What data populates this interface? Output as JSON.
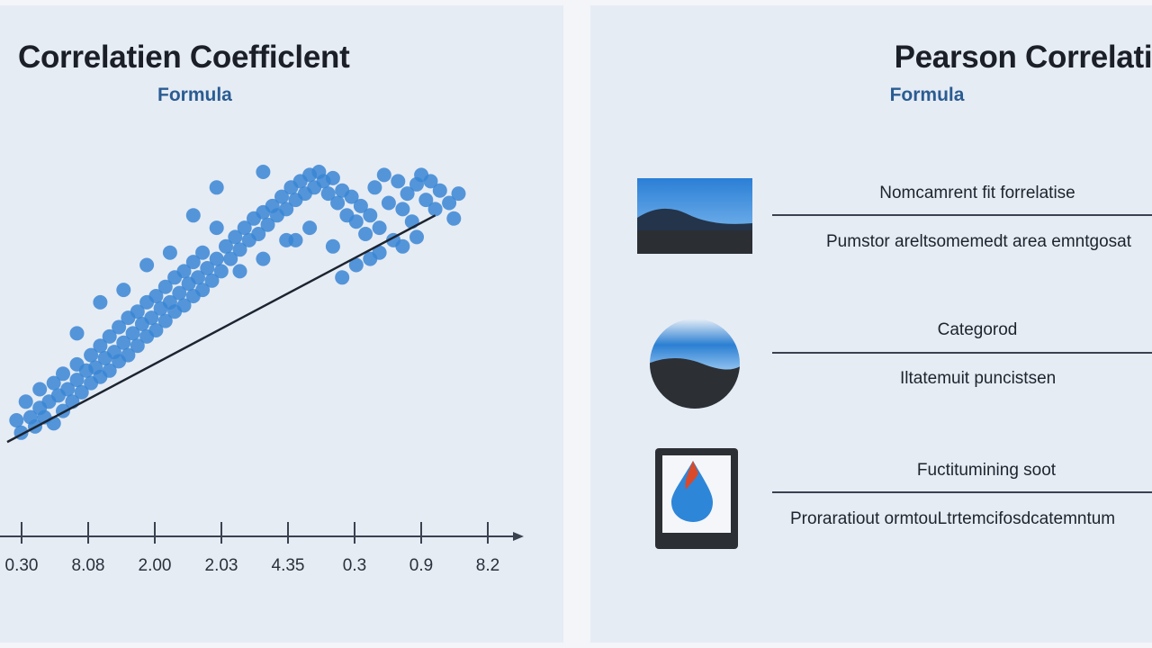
{
  "left": {
    "title": "Correlatien Coefficlent",
    "subtitle": "Formula"
  },
  "right": {
    "title": "Pearson Correlation",
    "subtitle": "Formula",
    "items": [
      {
        "heading": "Nomcamrent fit forrelatise",
        "description": "Pumstor areltsomemedt area emntgosat",
        "icon": "landscape-icon"
      },
      {
        "heading": "Categorod",
        "description": "Iltatemuit puncistsen",
        "icon": "landscape-circle-icon"
      },
      {
        "heading": "Fuctitumining soot",
        "description": "Proraratiout ormtouLtrtemcifosdcatemntum",
        "icon": "droplet-card-icon"
      }
    ]
  },
  "colors": {
    "point": "#3a86d4",
    "trendline": "#1c2430",
    "axis": "#3a4250",
    "title": "#1b1f27",
    "subtitle": "#2a5c92"
  },
  "chart_data": {
    "type": "scatter",
    "title": "Correlatien Coefficlent",
    "subtitle": "Formula",
    "xlabel": "",
    "ylabel": "",
    "x_tick_labels": [
      "0.30",
      "8.08",
      "2.00",
      "2.03",
      "4.35",
      "0.3",
      "0.9",
      "8.2"
    ],
    "grid": false,
    "legend": "none",
    "xlim": [
      0,
      1
    ],
    "ylim": [
      0,
      1
    ],
    "trendline": {
      "x": [
        0.0,
        0.92
      ],
      "y": [
        0.13,
        0.86
      ]
    },
    "points": [
      [
        0.02,
        0.2
      ],
      [
        0.03,
        0.16
      ],
      [
        0.04,
        0.26
      ],
      [
        0.05,
        0.21
      ],
      [
        0.06,
        0.18
      ],
      [
        0.07,
        0.24
      ],
      [
        0.07,
        0.3
      ],
      [
        0.08,
        0.21
      ],
      [
        0.09,
        0.26
      ],
      [
        0.1,
        0.32
      ],
      [
        0.1,
        0.19
      ],
      [
        0.11,
        0.28
      ],
      [
        0.12,
        0.23
      ],
      [
        0.12,
        0.35
      ],
      [
        0.13,
        0.3
      ],
      [
        0.14,
        0.26
      ],
      [
        0.15,
        0.33
      ],
      [
        0.15,
        0.38
      ],
      [
        0.16,
        0.29
      ],
      [
        0.17,
        0.36
      ],
      [
        0.18,
        0.32
      ],
      [
        0.18,
        0.41
      ],
      [
        0.19,
        0.37
      ],
      [
        0.2,
        0.34
      ],
      [
        0.2,
        0.44
      ],
      [
        0.21,
        0.4
      ],
      [
        0.22,
        0.36
      ],
      [
        0.22,
        0.47
      ],
      [
        0.23,
        0.42
      ],
      [
        0.24,
        0.39
      ],
      [
        0.24,
        0.5
      ],
      [
        0.25,
        0.45
      ],
      [
        0.26,
        0.41
      ],
      [
        0.26,
        0.53
      ],
      [
        0.27,
        0.48
      ],
      [
        0.28,
        0.44
      ],
      [
        0.28,
        0.55
      ],
      [
        0.29,
        0.51
      ],
      [
        0.3,
        0.47
      ],
      [
        0.3,
        0.58
      ],
      [
        0.31,
        0.53
      ],
      [
        0.32,
        0.49
      ],
      [
        0.32,
        0.6
      ],
      [
        0.33,
        0.56
      ],
      [
        0.34,
        0.52
      ],
      [
        0.34,
        0.63
      ],
      [
        0.35,
        0.58
      ],
      [
        0.36,
        0.55
      ],
      [
        0.36,
        0.66
      ],
      [
        0.37,
        0.61
      ],
      [
        0.38,
        0.57
      ],
      [
        0.38,
        0.68
      ],
      [
        0.39,
        0.64
      ],
      [
        0.4,
        0.6
      ],
      [
        0.4,
        0.71
      ],
      [
        0.41,
        0.66
      ],
      [
        0.42,
        0.62
      ],
      [
        0.42,
        0.74
      ],
      [
        0.43,
        0.69
      ],
      [
        0.44,
        0.65
      ],
      [
        0.45,
        0.72
      ],
      [
        0.46,
        0.68
      ],
      [
        0.47,
        0.76
      ],
      [
        0.48,
        0.72
      ],
      [
        0.49,
        0.79
      ],
      [
        0.5,
        0.75
      ],
      [
        0.51,
        0.82
      ],
      [
        0.52,
        0.78
      ],
      [
        0.53,
        0.85
      ],
      [
        0.54,
        0.8
      ],
      [
        0.55,
        0.87
      ],
      [
        0.56,
        0.83
      ],
      [
        0.57,
        0.89
      ],
      [
        0.58,
        0.86
      ],
      [
        0.59,
        0.92
      ],
      [
        0.6,
        0.88
      ],
      [
        0.61,
        0.95
      ],
      [
        0.62,
        0.91
      ],
      [
        0.63,
        0.97
      ],
      [
        0.64,
        0.93
      ],
      [
        0.65,
        0.99
      ],
      [
        0.66,
        0.95
      ],
      [
        0.67,
        1.0
      ],
      [
        0.68,
        0.97
      ],
      [
        0.69,
        0.93
      ],
      [
        0.7,
        0.98
      ],
      [
        0.71,
        0.9
      ],
      [
        0.72,
        0.94
      ],
      [
        0.73,
        0.86
      ],
      [
        0.74,
        0.92
      ],
      [
        0.75,
        0.84
      ],
      [
        0.76,
        0.89
      ],
      [
        0.77,
        0.8
      ],
      [
        0.78,
        0.86
      ],
      [
        0.79,
        0.95
      ],
      [
        0.8,
        0.82
      ],
      [
        0.81,
        0.99
      ],
      [
        0.82,
        0.9
      ],
      [
        0.83,
        0.78
      ],
      [
        0.84,
        0.97
      ],
      [
        0.85,
        0.88
      ],
      [
        0.86,
        0.93
      ],
      [
        0.87,
        0.84
      ],
      [
        0.88,
        0.96
      ],
      [
        0.89,
        0.99
      ],
      [
        0.9,
        0.91
      ],
      [
        0.91,
        0.97
      ],
      [
        0.92,
        0.88
      ],
      [
        0.93,
        0.94
      ],
      [
        0.95,
        0.9
      ],
      [
        0.96,
        0.85
      ],
      [
        0.97,
        0.93
      ],
      [
        0.3,
        0.7
      ],
      [
        0.35,
        0.74
      ],
      [
        0.45,
        0.82
      ],
      [
        0.5,
        0.68
      ],
      [
        0.55,
        0.72
      ],
      [
        0.6,
        0.78
      ],
      [
        0.25,
        0.62
      ],
      [
        0.2,
        0.58
      ],
      [
        0.15,
        0.48
      ],
      [
        0.4,
        0.86
      ],
      [
        0.65,
        0.82
      ],
      [
        0.7,
        0.76
      ],
      [
        0.75,
        0.7
      ],
      [
        0.8,
        0.74
      ],
      [
        0.45,
        0.95
      ],
      [
        0.55,
        1.0
      ],
      [
        0.62,
        0.78
      ],
      [
        0.72,
        0.66
      ],
      [
        0.78,
        0.72
      ],
      [
        0.85,
        0.76
      ],
      [
        0.88,
        0.79
      ]
    ]
  }
}
